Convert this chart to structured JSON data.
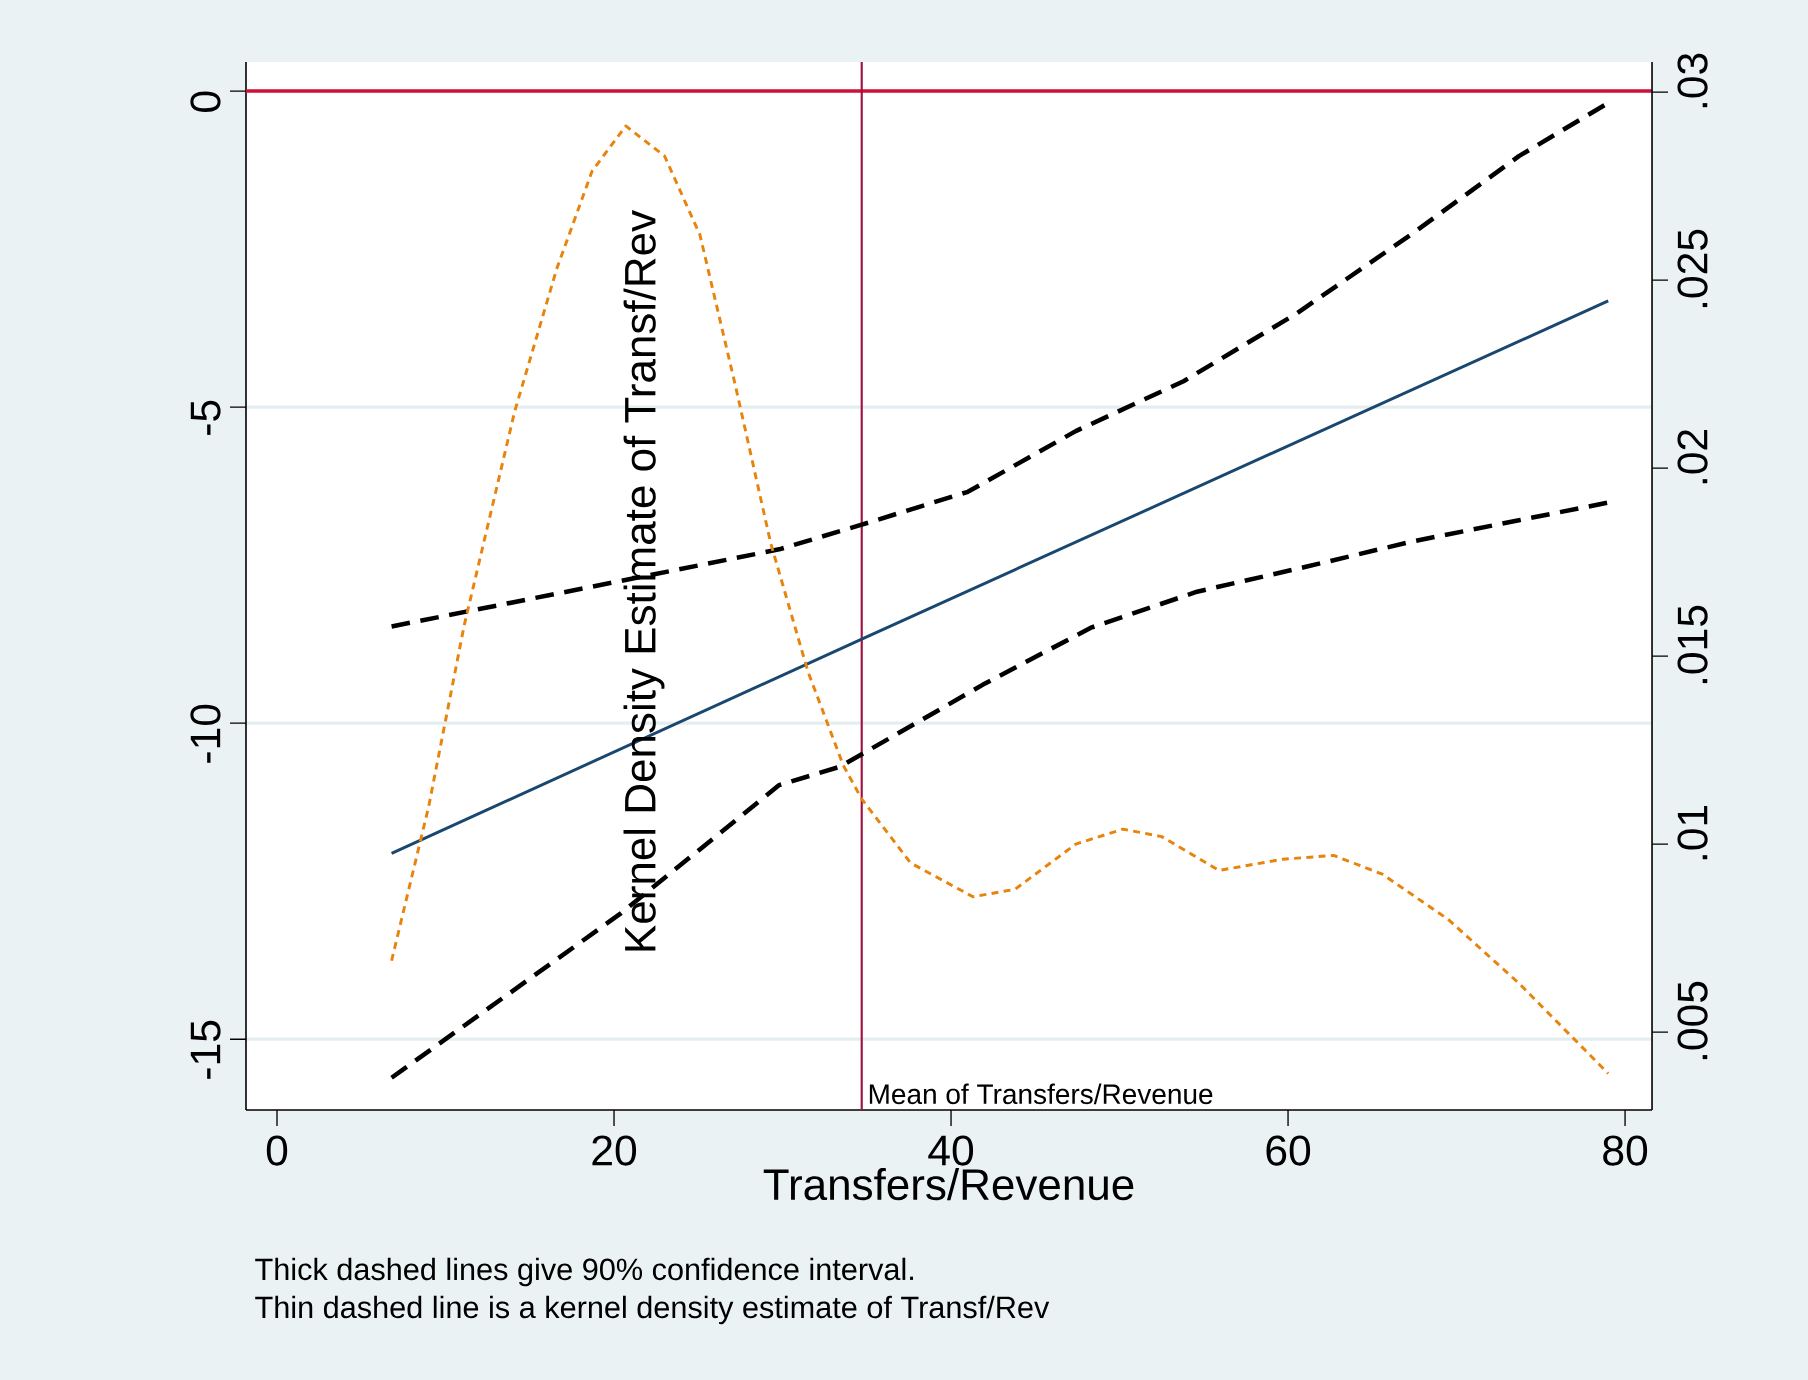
{
  "chart_data": {
    "type": "line",
    "xlabel": "Transfers/Revenue",
    "xlim": [
      -1.84,
      81.6
    ],
    "xticks": [
      0,
      20,
      40,
      60,
      80
    ],
    "ylim": [
      -16.12,
      0.46
    ],
    "yticks": [
      0,
      -5,
      -10,
      -15
    ],
    "y2lim": [
      0.00293,
      0.0308
    ],
    "y2ticks": [
      {
        "value": 0.03,
        "label": ".03"
      },
      {
        "value": 0.025,
        "label": ".025"
      },
      {
        "value": 0.02,
        "label": ".02"
      },
      {
        "value": 0.015,
        "label": ".015"
      },
      {
        "value": 0.01,
        "label": ".01"
      },
      {
        "value": 0.005,
        "label": ".005"
      }
    ],
    "grid": "y",
    "marker": "none",
    "series": [
      {
        "color": "#1a476f",
        "line_style": "solid",
        "x": [
          6.8,
          34.7,
          79.0
        ],
        "values": [
          -12.06,
          -8.67,
          -3.32
        ]
      },
      {
        "color": "#000000",
        "line_style": "dashed",
        "x": [
          6.8,
          20.4,
          29.8,
          34.7,
          41.0,
          47.4,
          53.8,
          60.5,
          67.3,
          73.7,
          78.8
        ],
        "values": [
          -8.47,
          -7.75,
          -7.25,
          -6.86,
          -6.34,
          -5.38,
          -4.59,
          -3.52,
          -2.27,
          -1.03,
          -0.22
        ]
      },
      {
        "color": "#000000",
        "line_style": "dashed",
        "x": [
          6.8,
          20.4,
          29.8,
          33.4,
          41.9,
          48.3,
          54.6,
          61.0,
          67.3,
          73.7,
          79.0
        ],
        "values": [
          -15.61,
          -13.01,
          -10.98,
          -10.69,
          -9.39,
          -8.49,
          -7.92,
          -7.53,
          -7.13,
          -6.79,
          -6.51
        ]
      },
      {
        "color": "#e8830c",
        "line_style": "dotted",
        "axis": "y2",
        "x": [
          6.8,
          9.0,
          11.1,
          14.1,
          16.6,
          18.7,
          20.7,
          23.0,
          25.1,
          27.2,
          29.3,
          31.5,
          33.6,
          34.7,
          37.6,
          41.3,
          43.8,
          47.4,
          50.2,
          52.5,
          55.9,
          59.7,
          62.7,
          65.6,
          69.5,
          73.7,
          79.0
        ],
        "values": [
          0.0069,
          0.011,
          0.0158,
          0.0215,
          0.0253,
          0.0279,
          0.0291,
          0.0283,
          0.0262,
          0.0222,
          0.018,
          0.0146,
          0.0121,
          0.0112,
          0.0095,
          0.0086,
          0.0088,
          0.01,
          0.0104,
          0.0102,
          0.0093,
          0.0096,
          0.0097,
          0.0092,
          0.008,
          0.0063,
          0.0039
        ]
      }
    ],
    "ref_lines": [
      {
        "axis": "y",
        "value": 0,
        "color": "#d0103a"
      },
      {
        "axis": "x",
        "value": 34.7,
        "color": "#a01040",
        "label": "Mean of Transfers/Revenue"
      }
    ],
    "annotations": [
      "Kernel Density Estimate of Transf/Rev",
      "Thick dashed lines give 90% confidence interval.",
      "Thin dashed line is a kernel density estimate of Transf/Rev"
    ]
  }
}
